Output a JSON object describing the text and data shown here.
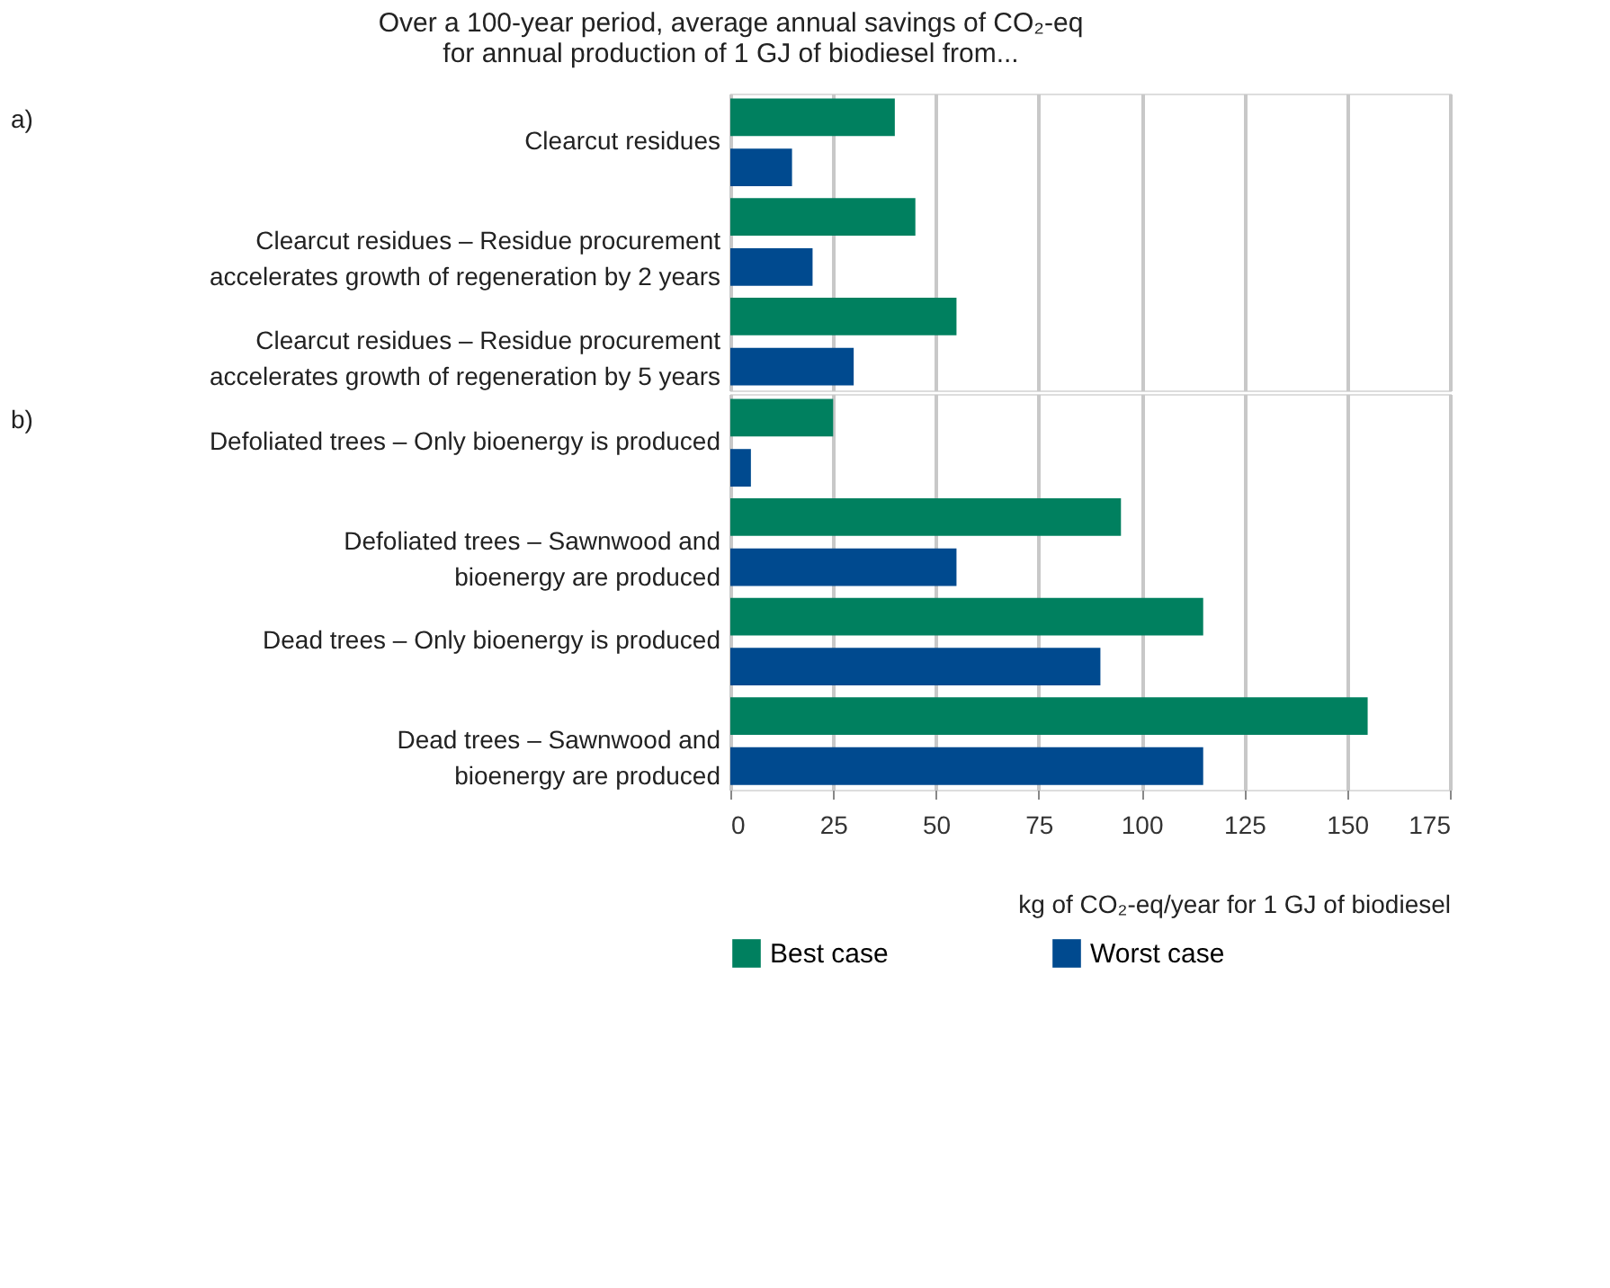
{
  "chart_data": [
    {
      "type": "bar",
      "orientation": "horizontal",
      "title": "Over a 100-year period, average annual savings of CO₂-eq for annual production of 1 GJ of biodiesel from...",
      "annotations": [
        "a)"
      ],
      "categories": [
        "Clearcut residues",
        "Clearcut residues – Residue procurement\naccelerates growth of regeneration by 2 years",
        "Clearcut residues – Residue procurement\naccelerates growth of regeneration by 5 years"
      ],
      "series": [
        {
          "name": "Best case",
          "color": "#00805f",
          "values": [
            40,
            45,
            55
          ]
        },
        {
          "name": "Worst case",
          "color": "#004a8f",
          "values": [
            15,
            20,
            30
          ]
        }
      ],
      "xlim": [
        0,
        175
      ],
      "xticks": [
        0,
        25,
        50,
        75,
        100,
        125,
        150,
        175
      ],
      "grid": "x",
      "tick_labels": "y",
      "legend": "bottom"
    },
    {
      "type": "bar",
      "orientation": "horizontal",
      "annotations": [
        "b)"
      ],
      "xlabel": "kg of CO₂-eq/year for 1 GJ of biodiesel",
      "categories": [
        "Defoliated trees – Only bioenergy is produced",
        "Defoliated trees – Sawnwood and\nbioenergy are produced",
        "Dead trees – Only bioenergy is produced",
        "Dead trees – Sawnwood and\nbioenergy are produced"
      ],
      "series": [
        {
          "name": "Best case",
          "color": "#00805f",
          "values": [
            25,
            95,
            115,
            155
          ]
        },
        {
          "name": "Worst case",
          "color": "#004a8f",
          "values": [
            5,
            55,
            90,
            115
          ]
        }
      ],
      "xlim": [
        0,
        175
      ],
      "xticks": [
        0,
        25,
        50,
        75,
        100,
        125,
        150,
        175
      ],
      "grid": "x",
      "legend": "bottom"
    }
  ]
}
